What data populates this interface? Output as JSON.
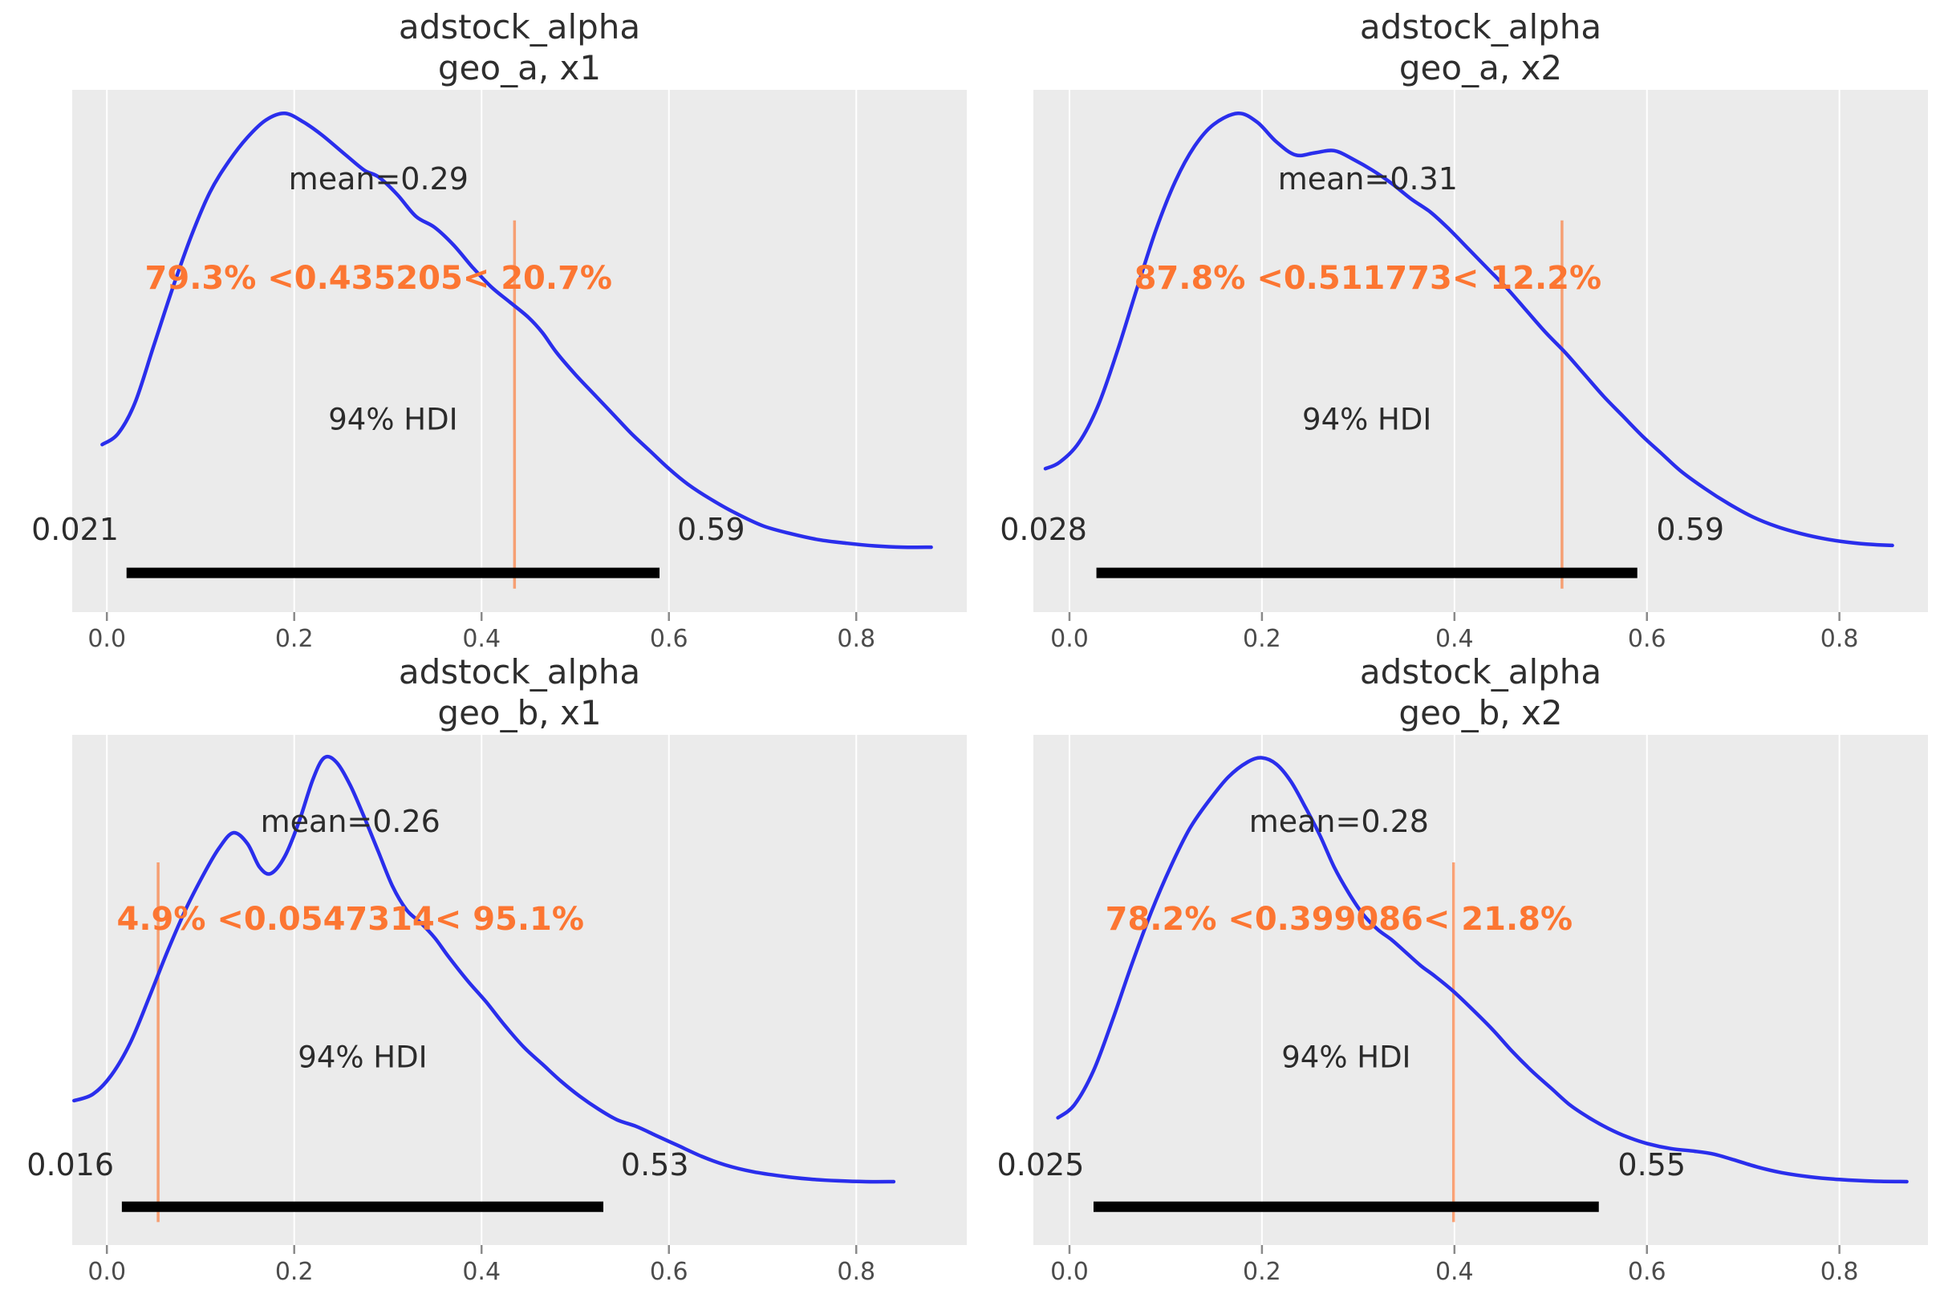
{
  "style": {
    "panel_bg": "#ebebeb",
    "grid_color": "#ffffff",
    "curve_color": "#2a2eec",
    "ref_color": "#fc7632",
    "ref_line_alpha": 0.65,
    "hdi_bar_color": "#000000",
    "text_color": "#2b2b2b",
    "tick_text_color": "#4c4c4c",
    "tick_mark_color": "#8a8a8a"
  },
  "chart_data": [
    {
      "type": "area",
      "subtype": "kde_posterior",
      "title_line1": "adstock_alpha",
      "title_line2": "geo_a, x1",
      "mean": 0.29,
      "mean_label": "mean=0.29",
      "ref_val": 0.435205,
      "ref_label": "79.3% <0.435205< 20.7%",
      "hdi_text": "94% HDI",
      "hdi_low": 0.021,
      "hdi_high": 0.59,
      "hdi_low_label": "0.021",
      "hdi_high_label": "0.59",
      "xlim": [
        -0.037,
        0.918
      ],
      "xticks": [
        0.0,
        0.2,
        0.4,
        0.6,
        0.8
      ],
      "xtick_labels": [
        "0.0",
        "0.2",
        "0.4",
        "0.6",
        "0.8"
      ],
      "grid": true,
      "curve": [
        [
          -0.005,
          0.245
        ],
        [
          0.012,
          0.27
        ],
        [
          0.03,
          0.34
        ],
        [
          0.05,
          0.47
        ],
        [
          0.07,
          0.6
        ],
        [
          0.09,
          0.72
        ],
        [
          0.11,
          0.82
        ],
        [
          0.13,
          0.89
        ],
        [
          0.15,
          0.945
        ],
        [
          0.17,
          0.985
        ],
        [
          0.19,
          1.0
        ],
        [
          0.21,
          0.98
        ],
        [
          0.23,
          0.95
        ],
        [
          0.255,
          0.905
        ],
        [
          0.275,
          0.87
        ],
        [
          0.29,
          0.855
        ],
        [
          0.31,
          0.815
        ],
        [
          0.33,
          0.765
        ],
        [
          0.35,
          0.74
        ],
        [
          0.37,
          0.7
        ],
        [
          0.39,
          0.65
        ],
        [
          0.41,
          0.605
        ],
        [
          0.43,
          0.57
        ],
        [
          0.45,
          0.535
        ],
        [
          0.465,
          0.5
        ],
        [
          0.48,
          0.455
        ],
        [
          0.5,
          0.405
        ],
        [
          0.52,
          0.36
        ],
        [
          0.54,
          0.315
        ],
        [
          0.56,
          0.27
        ],
        [
          0.58,
          0.23
        ],
        [
          0.6,
          0.19
        ],
        [
          0.62,
          0.155
        ],
        [
          0.645,
          0.12
        ],
        [
          0.67,
          0.09
        ],
        [
          0.7,
          0.06
        ],
        [
          0.73,
          0.042
        ],
        [
          0.76,
          0.028
        ],
        [
          0.79,
          0.02
        ],
        [
          0.82,
          0.014
        ],
        [
          0.85,
          0.011
        ],
        [
          0.88,
          0.011
        ]
      ]
    },
    {
      "type": "area",
      "subtype": "kde_posterior",
      "title_line1": "adstock_alpha",
      "title_line2": "geo_a, x2",
      "mean": 0.31,
      "mean_label": "mean=0.31",
      "ref_val": 0.511773,
      "ref_label": "87.8% <0.511773< 12.2%",
      "hdi_text": "94% HDI",
      "hdi_low": 0.028,
      "hdi_high": 0.59,
      "hdi_low_label": "0.028",
      "hdi_high_label": "0.59",
      "xlim": [
        -0.0375,
        0.892
      ],
      "xticks": [
        0.0,
        0.2,
        0.4,
        0.6,
        0.8
      ],
      "xtick_labels": [
        "0.0",
        "0.2",
        "0.4",
        "0.6",
        "0.8"
      ],
      "grid": true,
      "curve": [
        [
          -0.025,
          0.19
        ],
        [
          -0.01,
          0.205
        ],
        [
          0.01,
          0.25
        ],
        [
          0.03,
          0.335
        ],
        [
          0.05,
          0.46
        ],
        [
          0.07,
          0.6
        ],
        [
          0.09,
          0.735
        ],
        [
          0.11,
          0.845
        ],
        [
          0.13,
          0.925
        ],
        [
          0.15,
          0.975
        ],
        [
          0.175,
          1.0
        ],
        [
          0.195,
          0.98
        ],
        [
          0.215,
          0.935
        ],
        [
          0.235,
          0.905
        ],
        [
          0.255,
          0.91
        ],
        [
          0.275,
          0.915
        ],
        [
          0.295,
          0.895
        ],
        [
          0.315,
          0.87
        ],
        [
          0.335,
          0.84
        ],
        [
          0.355,
          0.805
        ],
        [
          0.375,
          0.775
        ],
        [
          0.395,
          0.735
        ],
        [
          0.415,
          0.69
        ],
        [
          0.435,
          0.645
        ],
        [
          0.455,
          0.6
        ],
        [
          0.475,
          0.55
        ],
        [
          0.495,
          0.5
        ],
        [
          0.515,
          0.455
        ],
        [
          0.535,
          0.405
        ],
        [
          0.555,
          0.355
        ],
        [
          0.575,
          0.31
        ],
        [
          0.595,
          0.265
        ],
        [
          0.615,
          0.225
        ],
        [
          0.635,
          0.185
        ],
        [
          0.66,
          0.145
        ],
        [
          0.685,
          0.11
        ],
        [
          0.71,
          0.08
        ],
        [
          0.735,
          0.058
        ],
        [
          0.76,
          0.042
        ],
        [
          0.785,
          0.03
        ],
        [
          0.81,
          0.022
        ],
        [
          0.835,
          0.017
        ],
        [
          0.855,
          0.015
        ]
      ]
    },
    {
      "type": "area",
      "subtype": "kde_posterior",
      "title_line1": "adstock_alpha",
      "title_line2": "geo_b, x1",
      "mean": 0.26,
      "mean_label": "mean=0.26",
      "ref_val": 0.0547314,
      "ref_label": "4.9% <0.0547314< 95.1%",
      "hdi_text": "94% HDI",
      "hdi_low": 0.016,
      "hdi_high": 0.53,
      "hdi_low_label": "0.016",
      "hdi_high_label": "0.53",
      "xlim": [
        -0.037,
        0.918
      ],
      "xticks": [
        0.0,
        0.2,
        0.4,
        0.6,
        0.8
      ],
      "xtick_labels": [
        "0.0",
        "0.2",
        "0.4",
        "0.6",
        "0.8"
      ],
      "grid": true,
      "curve": [
        [
          -0.035,
          0.2
        ],
        [
          -0.015,
          0.215
        ],
        [
          0.005,
          0.26
        ],
        [
          0.025,
          0.335
        ],
        [
          0.045,
          0.44
        ],
        [
          0.065,
          0.55
        ],
        [
          0.085,
          0.65
        ],
        [
          0.105,
          0.735
        ],
        [
          0.12,
          0.79
        ],
        [
          0.135,
          0.825
        ],
        [
          0.15,
          0.8
        ],
        [
          0.163,
          0.745
        ],
        [
          0.175,
          0.73
        ],
        [
          0.19,
          0.77
        ],
        [
          0.205,
          0.85
        ],
        [
          0.22,
          0.95
        ],
        [
          0.232,
          1.0
        ],
        [
          0.245,
          0.99
        ],
        [
          0.26,
          0.935
        ],
        [
          0.275,
          0.86
        ],
        [
          0.29,
          0.78
        ],
        [
          0.305,
          0.7
        ],
        [
          0.32,
          0.645
        ],
        [
          0.335,
          0.615
        ],
        [
          0.35,
          0.58
        ],
        [
          0.365,
          0.535
        ],
        [
          0.385,
          0.48
        ],
        [
          0.405,
          0.43
        ],
        [
          0.425,
          0.375
        ],
        [
          0.445,
          0.325
        ],
        [
          0.465,
          0.285
        ],
        [
          0.485,
          0.245
        ],
        [
          0.505,
          0.21
        ],
        [
          0.525,
          0.18
        ],
        [
          0.545,
          0.155
        ],
        [
          0.565,
          0.14
        ],
        [
          0.585,
          0.12
        ],
        [
          0.61,
          0.095
        ],
        [
          0.635,
          0.07
        ],
        [
          0.66,
          0.05
        ],
        [
          0.69,
          0.034
        ],
        [
          0.72,
          0.024
        ],
        [
          0.75,
          0.017
        ],
        [
          0.78,
          0.013
        ],
        [
          0.81,
          0.011
        ],
        [
          0.84,
          0.011
        ]
      ]
    },
    {
      "type": "area",
      "subtype": "kde_posterior",
      "title_line1": "adstock_alpha",
      "title_line2": "geo_b, x2",
      "mean": 0.28,
      "mean_label": "mean=0.28",
      "ref_val": 0.399086,
      "ref_label": "78.2% <0.399086< 21.8%",
      "hdi_text": "94% HDI",
      "hdi_low": 0.025,
      "hdi_high": 0.55,
      "hdi_low_label": "0.025",
      "hdi_high_label": "0.55",
      "xlim": [
        -0.0375,
        0.892
      ],
      "xticks": [
        0.0,
        0.2,
        0.4,
        0.6,
        0.8
      ],
      "xtick_labels": [
        "0.0",
        "0.2",
        "0.4",
        "0.6",
        "0.8"
      ],
      "grid": true,
      "curve": [
        [
          -0.012,
          0.16
        ],
        [
          0.005,
          0.19
        ],
        [
          0.025,
          0.27
        ],
        [
          0.045,
          0.39
        ],
        [
          0.065,
          0.52
        ],
        [
          0.085,
          0.64
        ],
        [
          0.105,
          0.745
        ],
        [
          0.125,
          0.835
        ],
        [
          0.145,
          0.9
        ],
        [
          0.165,
          0.955
        ],
        [
          0.185,
          0.99
        ],
        [
          0.2,
          1.0
        ],
        [
          0.215,
          0.985
        ],
        [
          0.23,
          0.945
        ],
        [
          0.245,
          0.885
        ],
        [
          0.26,
          0.82
        ],
        [
          0.275,
          0.745
        ],
        [
          0.29,
          0.685
        ],
        [
          0.305,
          0.635
        ],
        [
          0.32,
          0.6
        ],
        [
          0.335,
          0.575
        ],
        [
          0.35,
          0.545
        ],
        [
          0.365,
          0.515
        ],
        [
          0.38,
          0.49
        ],
        [
          0.399,
          0.455
        ],
        [
          0.42,
          0.41
        ],
        [
          0.44,
          0.365
        ],
        [
          0.46,
          0.315
        ],
        [
          0.48,
          0.27
        ],
        [
          0.5,
          0.23
        ],
        [
          0.52,
          0.19
        ],
        [
          0.54,
          0.16
        ],
        [
          0.56,
          0.135
        ],
        [
          0.58,
          0.115
        ],
        [
          0.6,
          0.1
        ],
        [
          0.625,
          0.088
        ],
        [
          0.65,
          0.082
        ],
        [
          0.67,
          0.075
        ],
        [
          0.69,
          0.062
        ],
        [
          0.715,
          0.045
        ],
        [
          0.74,
          0.032
        ],
        [
          0.77,
          0.022
        ],
        [
          0.8,
          0.016
        ],
        [
          0.835,
          0.012
        ],
        [
          0.87,
          0.011
        ]
      ]
    }
  ]
}
